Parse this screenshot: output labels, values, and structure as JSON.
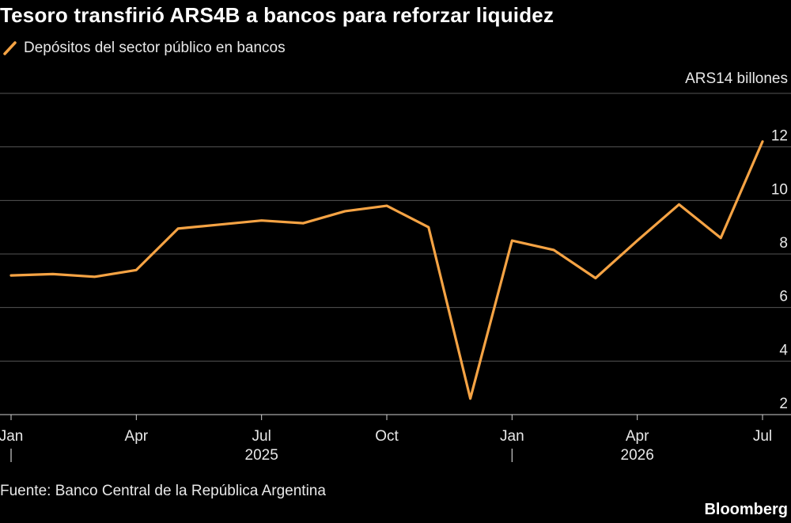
{
  "title": "Tesoro transfirió ARS4B a bancos para reforzar liquidez",
  "source": "Fuente: Banco Central de la República Argentina",
  "brand": "Bloomberg",
  "colors": {
    "background": "#000000",
    "line": "#f5a344",
    "grid": "#555555",
    "text": "#e8e8e8"
  },
  "chart_data": {
    "type": "line",
    "title": "Tesoro transfirió ARS4B a bancos para reforzar liquidez",
    "unit_label": "ARS14 billones",
    "ylim": [
      2,
      14
    ],
    "y_ticks": [
      2,
      4,
      6,
      8,
      10,
      12
    ],
    "y_axis_side": "right",
    "grid": "horizontal",
    "legend_placement": "top-left",
    "x_ticks": [
      {
        "label": "Jan",
        "x": "2025-01"
      },
      {
        "label": "Apr",
        "x": "2025-04"
      },
      {
        "label": "Jul",
        "x": "2025-07"
      },
      {
        "label": "Oct",
        "x": "2025-10"
      },
      {
        "label": "Jan",
        "x": "2026-01"
      },
      {
        "label": "Apr",
        "x": "2026-04"
      },
      {
        "label": "Jul",
        "x": "2026-07"
      }
    ],
    "year_labels": [
      {
        "label": "2025",
        "x": "2025-07"
      },
      {
        "label": "2026",
        "x": "2026-04"
      }
    ],
    "year_separators": [
      "2025-01",
      "2026-01"
    ],
    "series": [
      {
        "name": "Depósitos del sector público en bancos",
        "points": [
          {
            "x": "2025-01",
            "y": 7.2
          },
          {
            "x": "2025-02",
            "y": 7.25
          },
          {
            "x": "2025-03",
            "y": 7.15
          },
          {
            "x": "2025-04",
            "y": 7.4
          },
          {
            "x": "2025-05",
            "y": 8.95
          },
          {
            "x": "2025-06",
            "y": 9.1
          },
          {
            "x": "2025-07",
            "y": 9.25
          },
          {
            "x": "2025-08",
            "y": 9.15
          },
          {
            "x": "2025-09",
            "y": 9.6
          },
          {
            "x": "2025-10",
            "y": 9.8
          },
          {
            "x": "2025-11",
            "y": 9.0
          },
          {
            "x": "2025-12",
            "y": 2.6
          },
          {
            "x": "2026-01",
            "y": 8.5
          },
          {
            "x": "2026-02",
            "y": 8.15
          },
          {
            "x": "2026-03",
            "y": 7.1
          },
          {
            "x": "2026-04",
            "y": 8.5
          },
          {
            "x": "2026-05",
            "y": 9.85
          },
          {
            "x": "2026-06",
            "y": 8.6
          },
          {
            "x": "2026-07",
            "y": 12.2
          }
        ]
      }
    ]
  }
}
